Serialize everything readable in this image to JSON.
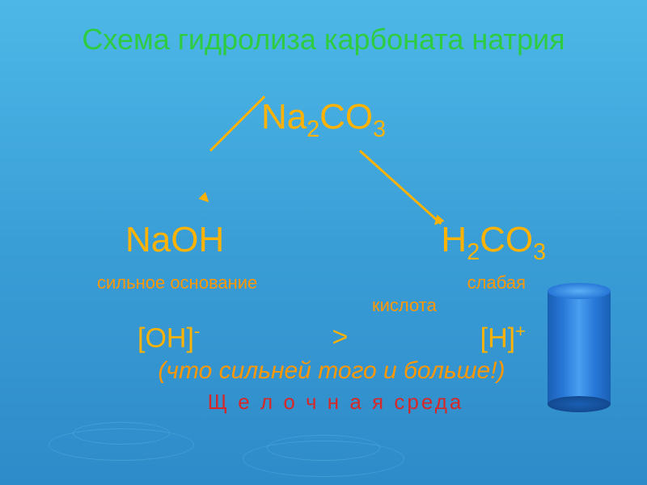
{
  "colors": {
    "title": "#2ecc40",
    "formula": "#ffb300",
    "desc": "#ff9800",
    "ion": "#ffb300",
    "italic": "#ff9800",
    "bottom": "#d62828",
    "arrow": "#ffb300",
    "background_gradient_top": "#4db8e8",
    "background_gradient_bottom": "#2e8bc9",
    "cylinder_main": "#2878d8"
  },
  "typography": {
    "title_fontsize": 36,
    "formula_fontsize": 44,
    "desc_fontsize": 22,
    "ion_fontsize": 34,
    "italic_fontsize": 30,
    "bottom_fontsize": 26
  },
  "title": "Схема гидролиза карбоната натрия",
  "formula_main": {
    "base": "Na",
    "sub1": "2",
    "mid": "CO",
    "sub2": "3"
  },
  "product_left": {
    "text": "NaOH"
  },
  "product_right": {
    "base": "H",
    "sub1": "2",
    "mid": "CO",
    "sub2": "3"
  },
  "desc_left": "сильное основание",
  "desc_right1": "слабая",
  "desc_right2": "кислота",
  "ion_left": {
    "base": "[OH]",
    "sup": "-"
  },
  "ion_compare": ">",
  "ion_right": {
    "base": "[H]",
    "sup": "+"
  },
  "italic_line": "(что сильней того и больше!)",
  "bottom_line": "Щ е л о ч н а я   среда",
  "diagram": {
    "type": "flowchart",
    "root": "Na2CO3",
    "branches": [
      "NaOH",
      "H2CO3"
    ],
    "branch_labels": [
      "сильное основание",
      "слабая кислота"
    ],
    "ions": [
      "[OH]-",
      "[H]+"
    ],
    "relation": ">",
    "conclusion": "Щелочная среда",
    "arrow_color": "#ffb300",
    "arrow_width": 3
  }
}
